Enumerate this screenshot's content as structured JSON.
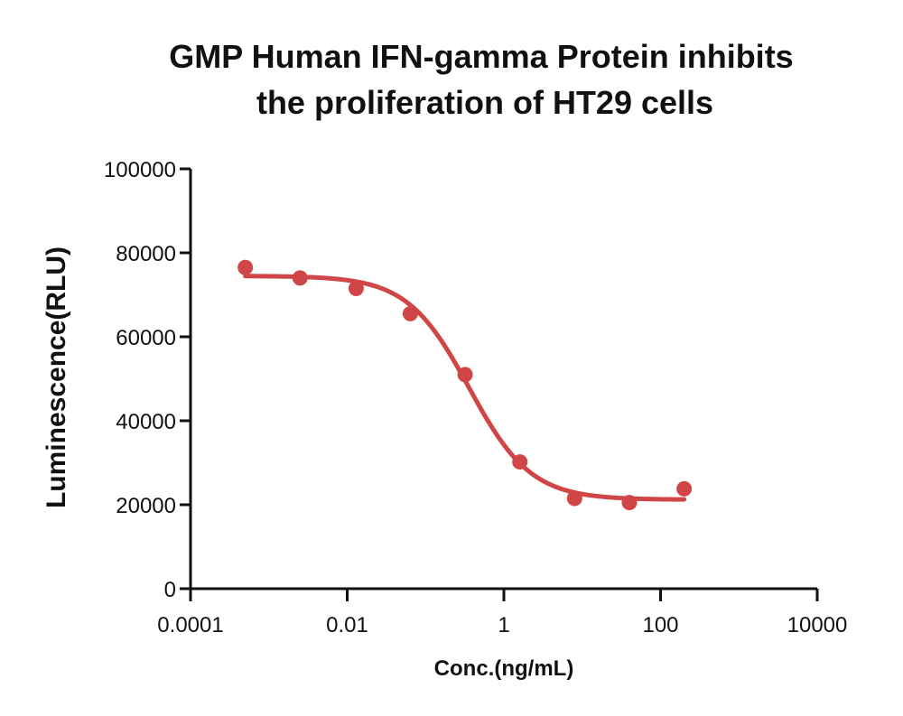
{
  "chart_data": {
    "type": "scatter",
    "title": "GMP Human IFN-gamma Protein inhibits the proliferation of HT29 cells",
    "title_lines": [
      "GMP Human IFN-gamma Protein inhibits",
      "the proliferation of HT29 cells"
    ],
    "xlabel": "Conc.(ng/mL)",
    "ylabel": "Luminescence(RLU)",
    "x_scale": "log",
    "xlim": [
      0.0001,
      10000
    ],
    "ylim": [
      0,
      100000
    ],
    "x_ticks": [
      0.0001,
      0.01,
      1,
      100,
      10000
    ],
    "x_tick_labels": [
      "0.0001",
      "0.01",
      "1",
      "100",
      "10000"
    ],
    "y_ticks": [
      0,
      20000,
      40000,
      60000,
      80000,
      100000
    ],
    "y_tick_labels": [
      "0",
      "20000",
      "40000",
      "60000",
      "80000",
      "100000"
    ],
    "grid": false,
    "legend": "none",
    "color": "#d04646",
    "series": [
      {
        "x": [
          0.0005,
          0.0025,
          0.013,
          0.064,
          0.32,
          1.6,
          8,
          40,
          200
        ],
        "y": [
          76500,
          74000,
          71500,
          65500,
          51000,
          30200,
          21500,
          20500,
          23800
        ]
      }
    ],
    "fit": {
      "model": "4PL",
      "top": 74500,
      "bottom": 21200,
      "ec50": 0.36,
      "hill": 1.1
    }
  }
}
